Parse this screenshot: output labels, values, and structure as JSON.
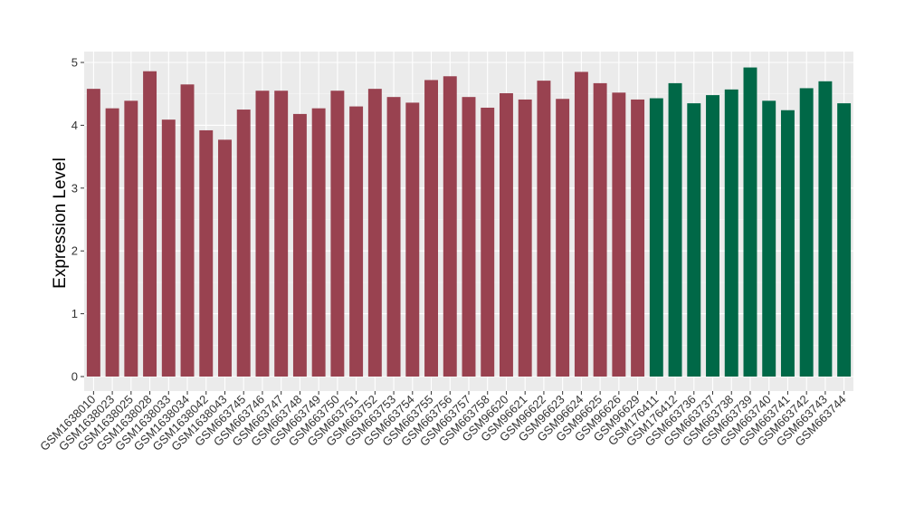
{
  "chart_data": {
    "type": "bar",
    "title": "",
    "xlabel": "",
    "ylabel": "Expression Level",
    "ylim": [
      0,
      5.0
    ],
    "yticks": [
      0,
      1,
      2,
      3,
      4,
      5
    ],
    "grid": true,
    "background": "#EBEBEB",
    "colors": {
      "group_a": "#994250",
      "group_b": "#006847"
    },
    "categories": [
      "GSM1638010",
      "GSM1638023",
      "GSM1638025",
      "GSM1638028",
      "GSM1638033",
      "GSM1638034",
      "GSM1638042",
      "GSM1638043",
      "GSM663745",
      "GSM663746",
      "GSM663747",
      "GSM663748",
      "GSM663749",
      "GSM663750",
      "GSM663751",
      "GSM663752",
      "GSM663753",
      "GSM663754",
      "GSM663755",
      "GSM663756",
      "GSM663757",
      "GSM663758",
      "GSM96620",
      "GSM96621",
      "GSM96622",
      "GSM96623",
      "GSM96624",
      "GSM96625",
      "GSM96626",
      "GSM96629",
      "GSM176411",
      "GSM176412",
      "GSM663736",
      "GSM663737",
      "GSM663738",
      "GSM663739",
      "GSM663740",
      "GSM663741",
      "GSM663742",
      "GSM663743",
      "GSM663744"
    ],
    "values": [
      4.58,
      4.27,
      4.39,
      4.86,
      4.09,
      4.65,
      3.92,
      3.77,
      4.25,
      4.55,
      4.55,
      4.18,
      4.27,
      4.55,
      4.3,
      4.58,
      4.45,
      4.36,
      4.72,
      4.78,
      4.45,
      4.28,
      4.51,
      4.41,
      4.71,
      4.42,
      4.85,
      4.67,
      4.52,
      4.41,
      4.43,
      4.67,
      4.35,
      4.48,
      4.57,
      4.92,
      4.39,
      4.24,
      4.59,
      4.7,
      4.35
    ],
    "groups": [
      "a",
      "a",
      "a",
      "a",
      "a",
      "a",
      "a",
      "a",
      "a",
      "a",
      "a",
      "a",
      "a",
      "a",
      "a",
      "a",
      "a",
      "a",
      "a",
      "a",
      "a",
      "a",
      "a",
      "a",
      "a",
      "a",
      "a",
      "a",
      "a",
      "a",
      "b",
      "b",
      "b",
      "b",
      "b",
      "b",
      "b",
      "b",
      "b",
      "b",
      "b"
    ]
  }
}
